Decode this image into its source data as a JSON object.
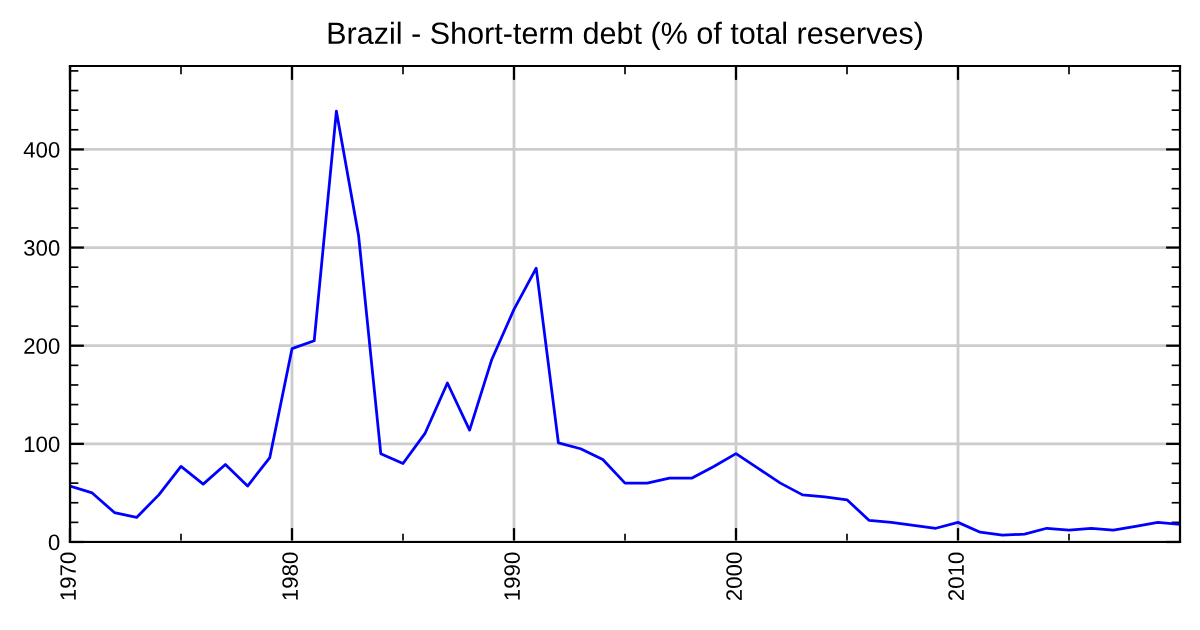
{
  "chart_data": {
    "type": "line",
    "title": "Brazil - Short-term debt (% of total reserves)",
    "x": [
      1970,
      1971,
      1972,
      1973,
      1974,
      1975,
      1976,
      1977,
      1978,
      1979,
      1980,
      1981,
      1982,
      1983,
      1984,
      1985,
      1986,
      1987,
      1988,
      1989,
      1990,
      1991,
      1992,
      1993,
      1994,
      1995,
      1996,
      1997,
      1998,
      1999,
      2000,
      2001,
      2002,
      2003,
      2004,
      2005,
      2006,
      2007,
      2008,
      2009,
      2010,
      2011,
      2012,
      2013,
      2014,
      2015,
      2016,
      2017,
      2018,
      2019,
      2020
    ],
    "series": [
      {
        "color": "#0000ff",
        "values": [
          57,
          50,
          30,
          25,
          48,
          77,
          59,
          79,
          57,
          86,
          197,
          205,
          439,
          312,
          90,
          80,
          111,
          162,
          114,
          186,
          237,
          279,
          101,
          95,
          84,
          60,
          60,
          65,
          65,
          77,
          90,
          75,
          60,
          48,
          46,
          43,
          22,
          20,
          17,
          14,
          20,
          10,
          7,
          8,
          14,
          12,
          14,
          12,
          16,
          20,
          18
        ]
      }
    ],
    "xlim": [
      1970,
      2020
    ],
    "ylim": [
      0,
      485
    ],
    "xticks": [
      1970,
      1980,
      1990,
      2000,
      2010
    ],
    "yticks": [
      0,
      100,
      200,
      300,
      400
    ],
    "grid": true,
    "marker": "none",
    "line_style": "solid"
  }
}
